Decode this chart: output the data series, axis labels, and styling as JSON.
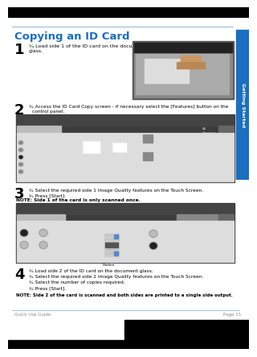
{
  "title": "Copying an ID Card",
  "title_color": "#1A6FBF",
  "bg_color": "#FFFFFF",
  "header_text": "Getting Started",
  "header_color": "#7AAACE",
  "footer_left": "Quick Use Guide",
  "footer_right": "Page 15",
  "footer_color": "#888888",
  "sidebar_text": "Getting Started",
  "sidebar_color": "#1A6FBF",
  "line_color": "#7AAAD0",
  "top_bar_color": "#000000",
  "step1_bullet1": "¾ Load side 1 of the ID card on the document",
  "step1_bullet2": "glass.",
  "step2_text1": "¾ Access the ID Card Copy screen - if necessary select the [Features] button on the",
  "step2_text2": "control panel.",
  "step3_bullet1": "¾ Select the required side 1 Image Quality features on the Touch Screen.",
  "step3_bullet2": "¾ Press [Start].",
  "step3_note": "NOTE: Side 1 of the card is only scanned once.",
  "step4_bullets": [
    "¾ Load side 2 of the ID card on the document glass.",
    "¾ Select the required side 2 Image Quality features on the Touch Screen.",
    "¾ Select the number of copies required.",
    "¾ Press [Start]."
  ],
  "step4_note": "NOTE: Side 2 of the card is scanned and both sides are printed to a single side output.",
  "screen_dark": "#3C3C3C",
  "screen_mid": "#555555",
  "screen_light": "#CCCCCC",
  "screen_lighter": "#E0E0E0",
  "screen_tab": "#AAAAAA",
  "screen_header_text": "#FFEE99",
  "screen_white": "#FFFFFF"
}
